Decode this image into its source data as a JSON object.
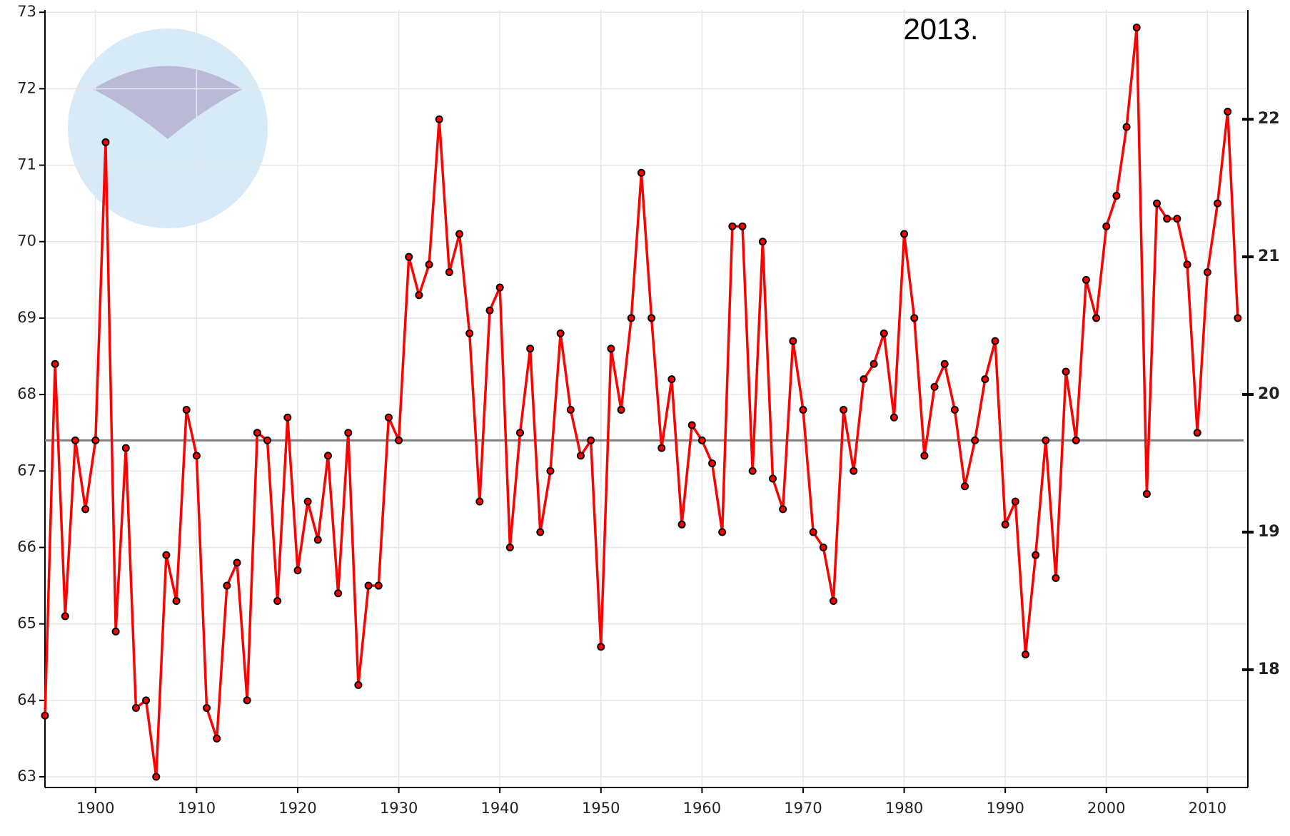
{
  "chart_data": {
    "type": "line",
    "annotation": "2013.",
    "x": [
      1895,
      1896,
      1897,
      1898,
      1899,
      1900,
      1901,
      1902,
      1903,
      1904,
      1905,
      1906,
      1907,
      1908,
      1909,
      1910,
      1911,
      1912,
      1913,
      1914,
      1915,
      1916,
      1917,
      1918,
      1919,
      1920,
      1921,
      1922,
      1923,
      1924,
      1925,
      1926,
      1927,
      1928,
      1929,
      1930,
      1931,
      1932,
      1933,
      1934,
      1935,
      1936,
      1937,
      1938,
      1939,
      1940,
      1941,
      1942,
      1943,
      1944,
      1945,
      1946,
      1947,
      1948,
      1949,
      1950,
      1951,
      1952,
      1953,
      1954,
      1955,
      1956,
      1957,
      1958,
      1959,
      1960,
      1961,
      1962,
      1963,
      1964,
      1965,
      1966,
      1967,
      1968,
      1969,
      1970,
      1971,
      1972,
      1973,
      1974,
      1975,
      1976,
      1977,
      1978,
      1979,
      1980,
      1981,
      1982,
      1983,
      1984,
      1985,
      1986,
      1987,
      1988,
      1989,
      1990,
      1991,
      1992,
      1993,
      1994,
      1995,
      1996,
      1997,
      1998,
      1999,
      2000,
      2001,
      2002,
      2003,
      2004,
      2005,
      2006,
      2007,
      2008,
      2009,
      2010,
      2011,
      2012,
      2013
    ],
    "series": [
      {
        "color": "#ff0000",
        "marker_edge": "#000000",
        "values": [
          63.8,
          68.4,
          65.1,
          67.4,
          66.5,
          67.4,
          71.3,
          64.9,
          67.3,
          63.9,
          64.0,
          63.0,
          65.9,
          65.3,
          67.8,
          67.2,
          63.9,
          63.5,
          65.5,
          65.8,
          64.0,
          67.5,
          67.4,
          65.3,
          67.7,
          65.7,
          66.6,
          66.1,
          67.2,
          65.4,
          67.5,
          64.2,
          65.5,
          65.5,
          67.7,
          67.4,
          69.8,
          69.3,
          69.7,
          71.6,
          69.6,
          70.1,
          68.8,
          66.6,
          69.1,
          69.4,
          66.0,
          67.5,
          68.6,
          66.2,
          67.0,
          68.8,
          67.8,
          67.2,
          67.4,
          64.7,
          68.6,
          67.8,
          69.0,
          70.9,
          69.0,
          67.3,
          68.2,
          66.3,
          67.6,
          67.4,
          67.1,
          66.2,
          70.2,
          70.2,
          67.0,
          70.0,
          66.9,
          66.5,
          68.7,
          67.8,
          66.2,
          66.0,
          65.3,
          67.8,
          67.0,
          68.2,
          68.4,
          68.8,
          67.7,
          70.1,
          69.0,
          67.2,
          68.1,
          68.4,
          67.8,
          66.8,
          67.4,
          68.2,
          68.7,
          66.3,
          66.6,
          64.6,
          65.9,
          67.4,
          65.6,
          68.3,
          67.4,
          69.5,
          69.0,
          70.2,
          70.6,
          71.5,
          72.8,
          66.7,
          70.5,
          70.3,
          70.3,
          69.7,
          67.5,
          69.6,
          70.5,
          71.7,
          69.0
        ]
      }
    ],
    "reference_line": {
      "value": 67.4,
      "color": "#808080"
    },
    "xlim": [
      1895,
      2014
    ],
    "xticks": [
      1900,
      1910,
      1920,
      1930,
      1940,
      1950,
      1960,
      1970,
      1980,
      1990,
      2000,
      2010
    ],
    "ylim": [
      62.86,
      73.03
    ],
    "yticks": [
      63,
      64,
      65,
      66,
      67,
      68,
      69,
      70,
      71,
      72,
      73
    ],
    "y2lim": [
      17.144,
      22.794
    ],
    "y2ticks": [
      18,
      19,
      20,
      21,
      22
    ],
    "grid": true
  }
}
